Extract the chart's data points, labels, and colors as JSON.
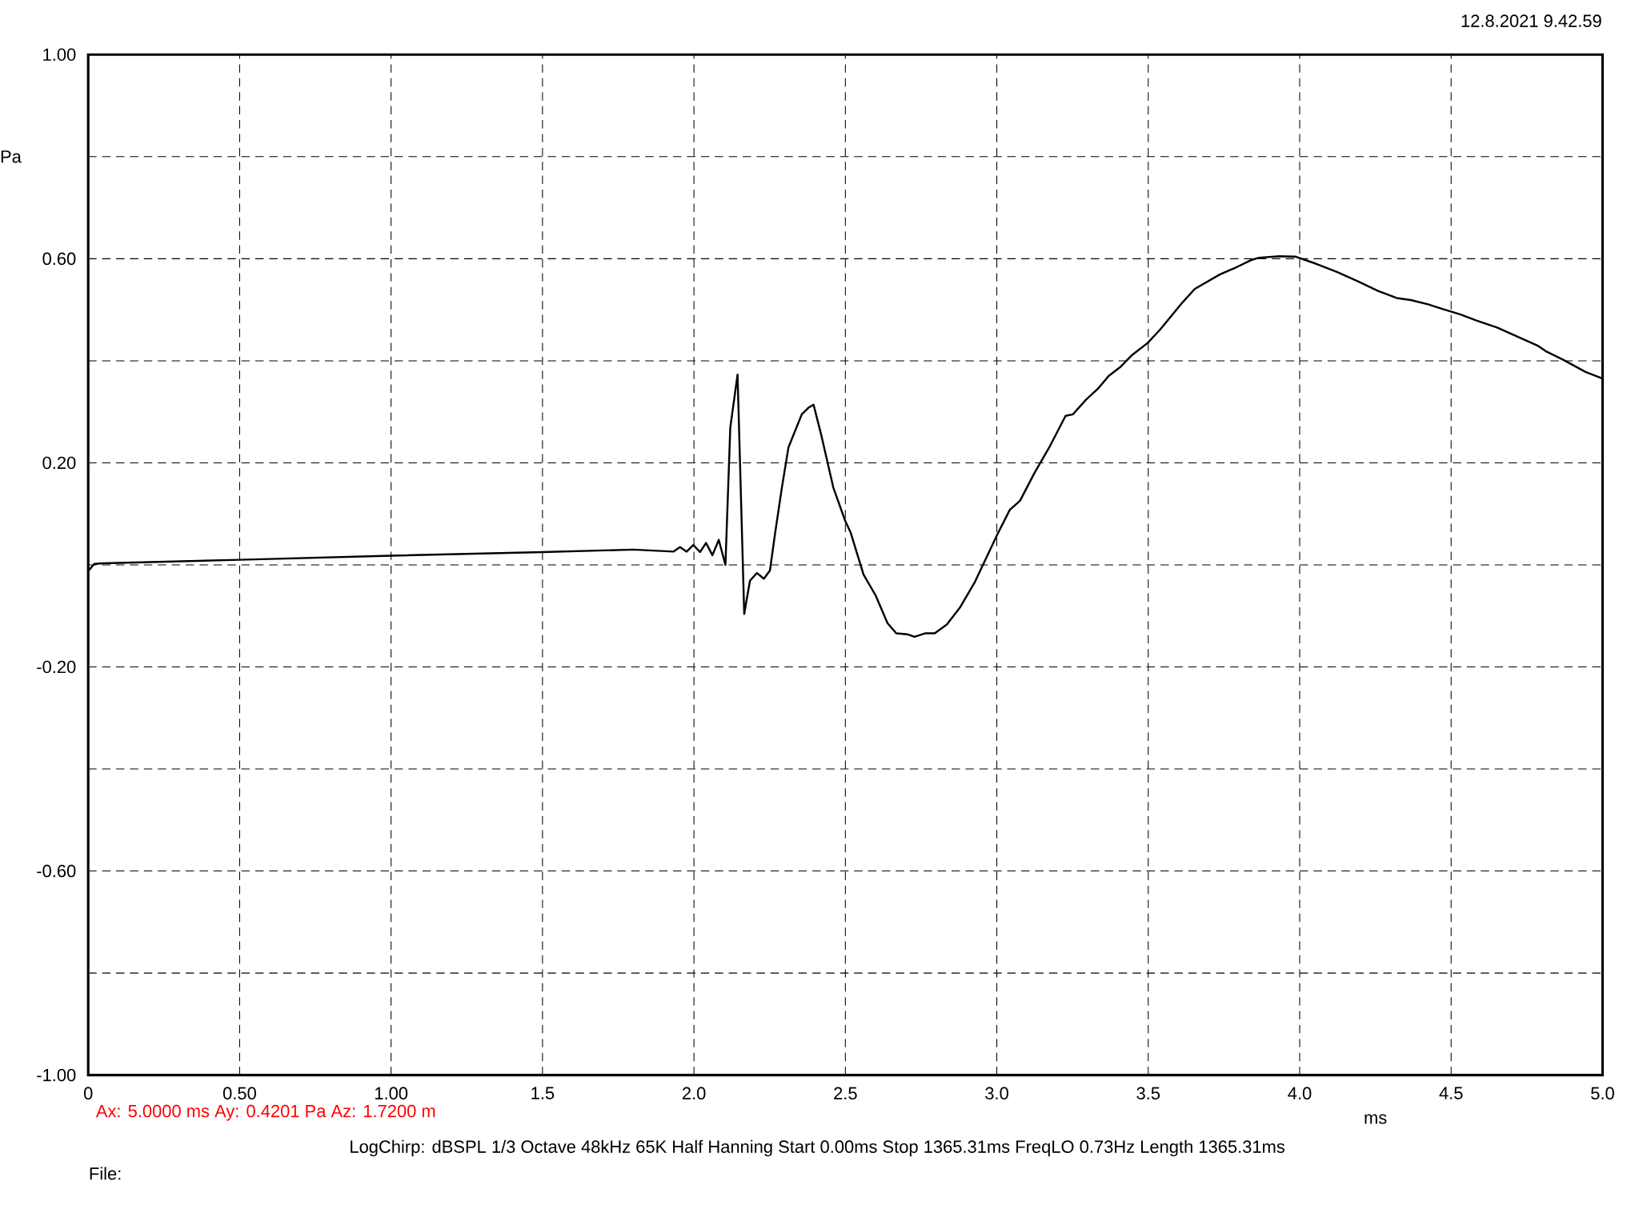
{
  "chart_data": {
    "type": "line",
    "subtitle": "12.8.2021 9.42.59",
    "xlabel": "ms",
    "ylabel": "Pa",
    "annotations": [
      "Ax: 5.0000 ms   Ay: 0.4201 Pa   Az: 1.7200 m",
      "LogChirp:  dBSPL   1/3 Octave   48kHz   65K   Half Hanning   Start 0.00ms    Stop 1365.31ms    FreqLO 0.73Hz    Length 1365.31ms",
      "File:"
    ],
    "xlim": [
      0,
      5
    ],
    "ylim": [
      -1,
      1
    ],
    "xticks": [
      0,
      {
        "value": 0.5,
        "label": "0.50"
      },
      {
        "value": 1,
        "label": "1.00"
      },
      {
        "value": 1.5,
        "label": "1.5"
      },
      {
        "value": 2,
        "label": "2.0"
      },
      {
        "value": 2.5,
        "label": "2.5"
      },
      {
        "value": 3,
        "label": "3.0"
      },
      {
        "value": 3.5,
        "label": "3.5"
      },
      {
        "value": 4,
        "label": "4.0"
      },
      {
        "value": 4.5,
        "label": "4.5"
      },
      {
        "value": 5,
        "label": "5.0"
      }
    ],
    "yticks": [
      {
        "value": -1,
        "label": "-1.00"
      },
      {
        "value": -0.8,
        "label": null
      },
      {
        "value": -0.6,
        "label": "-0.60"
      },
      {
        "value": -0.4,
        "label": null
      },
      {
        "value": -0.2,
        "label": "-0.20"
      },
      {
        "value": 0,
        "label": null
      },
      {
        "value": 0.2,
        "label": "0.20"
      },
      {
        "value": 0.4,
        "label": null
      },
      {
        "value": 0.6,
        "label": "0.60"
      },
      {
        "value": 0.8,
        "label": null
      },
      {
        "value": 1,
        "label": "1.00"
      }
    ],
    "grid": true,
    "line_style": "solid",
    "marker": "none",
    "series": [
      {
        "color": "#000000",
        "x": [
          0,
          0.02,
          0.05,
          0.5,
          1.0,
          1.5,
          1.8,
          1.932,
          1.954,
          1.976,
          1.998,
          2.02,
          2.04,
          2.061,
          2.082,
          2.104,
          2.12,
          2.144,
          2.166,
          2.185,
          2.208,
          2.231,
          2.251,
          2.268,
          2.29,
          2.312,
          2.356,
          2.378,
          2.395,
          2.421,
          2.46,
          2.499,
          2.517,
          2.56,
          2.6,
          2.639,
          2.668,
          2.704,
          2.728,
          2.765,
          2.795,
          2.835,
          2.879,
          2.928,
          3.002,
          3.043,
          3.077,
          3.125,
          3.172,
          3.227,
          3.251,
          3.295,
          3.335,
          3.369,
          3.41,
          3.444,
          3.498,
          3.539,
          3.614,
          3.654,
          3.736,
          3.783,
          3.838,
          3.865,
          3.932,
          3.987,
          4.055,
          4.123,
          4.191,
          4.259,
          4.32,
          4.367,
          4.422,
          4.469,
          4.53,
          4.584,
          4.652,
          4.72,
          4.788,
          4.815,
          4.87,
          4.944,
          5.0
        ],
        "values": [
          -0.012,
          0.002,
          0.003,
          0.01,
          0.018,
          0.025,
          0.03,
          0.026,
          0.035,
          0.026,
          0.039,
          0.025,
          0.043,
          0.019,
          0.049,
          0,
          0.269,
          0.373,
          -0.096,
          -0.031,
          -0.016,
          -0.027,
          -0.011,
          0.062,
          0.15,
          0.23,
          0.295,
          0.308,
          0.314,
          0.253,
          0.152,
          0.087,
          0.064,
          -0.019,
          -0.06,
          -0.114,
          -0.134,
          -0.136,
          -0.141,
          -0.134,
          -0.134,
          -0.117,
          -0.083,
          -0.033,
          0.06,
          0.108,
          0.126,
          0.181,
          0.229,
          0.292,
          0.295,
          0.324,
          0.346,
          0.37,
          0.389,
          0.41,
          0.435,
          0.461,
          0.515,
          0.541,
          0.569,
          0.581,
          0.597,
          0.602,
          0.605,
          0.604,
          0.59,
          0.574,
          0.556,
          0.537,
          0.523,
          0.519,
          0.511,
          0.502,
          0.491,
          0.479,
          0.465,
          0.447,
          0.429,
          0.418,
          0.402,
          0.378,
          0.365
        ]
      }
    ]
  }
}
